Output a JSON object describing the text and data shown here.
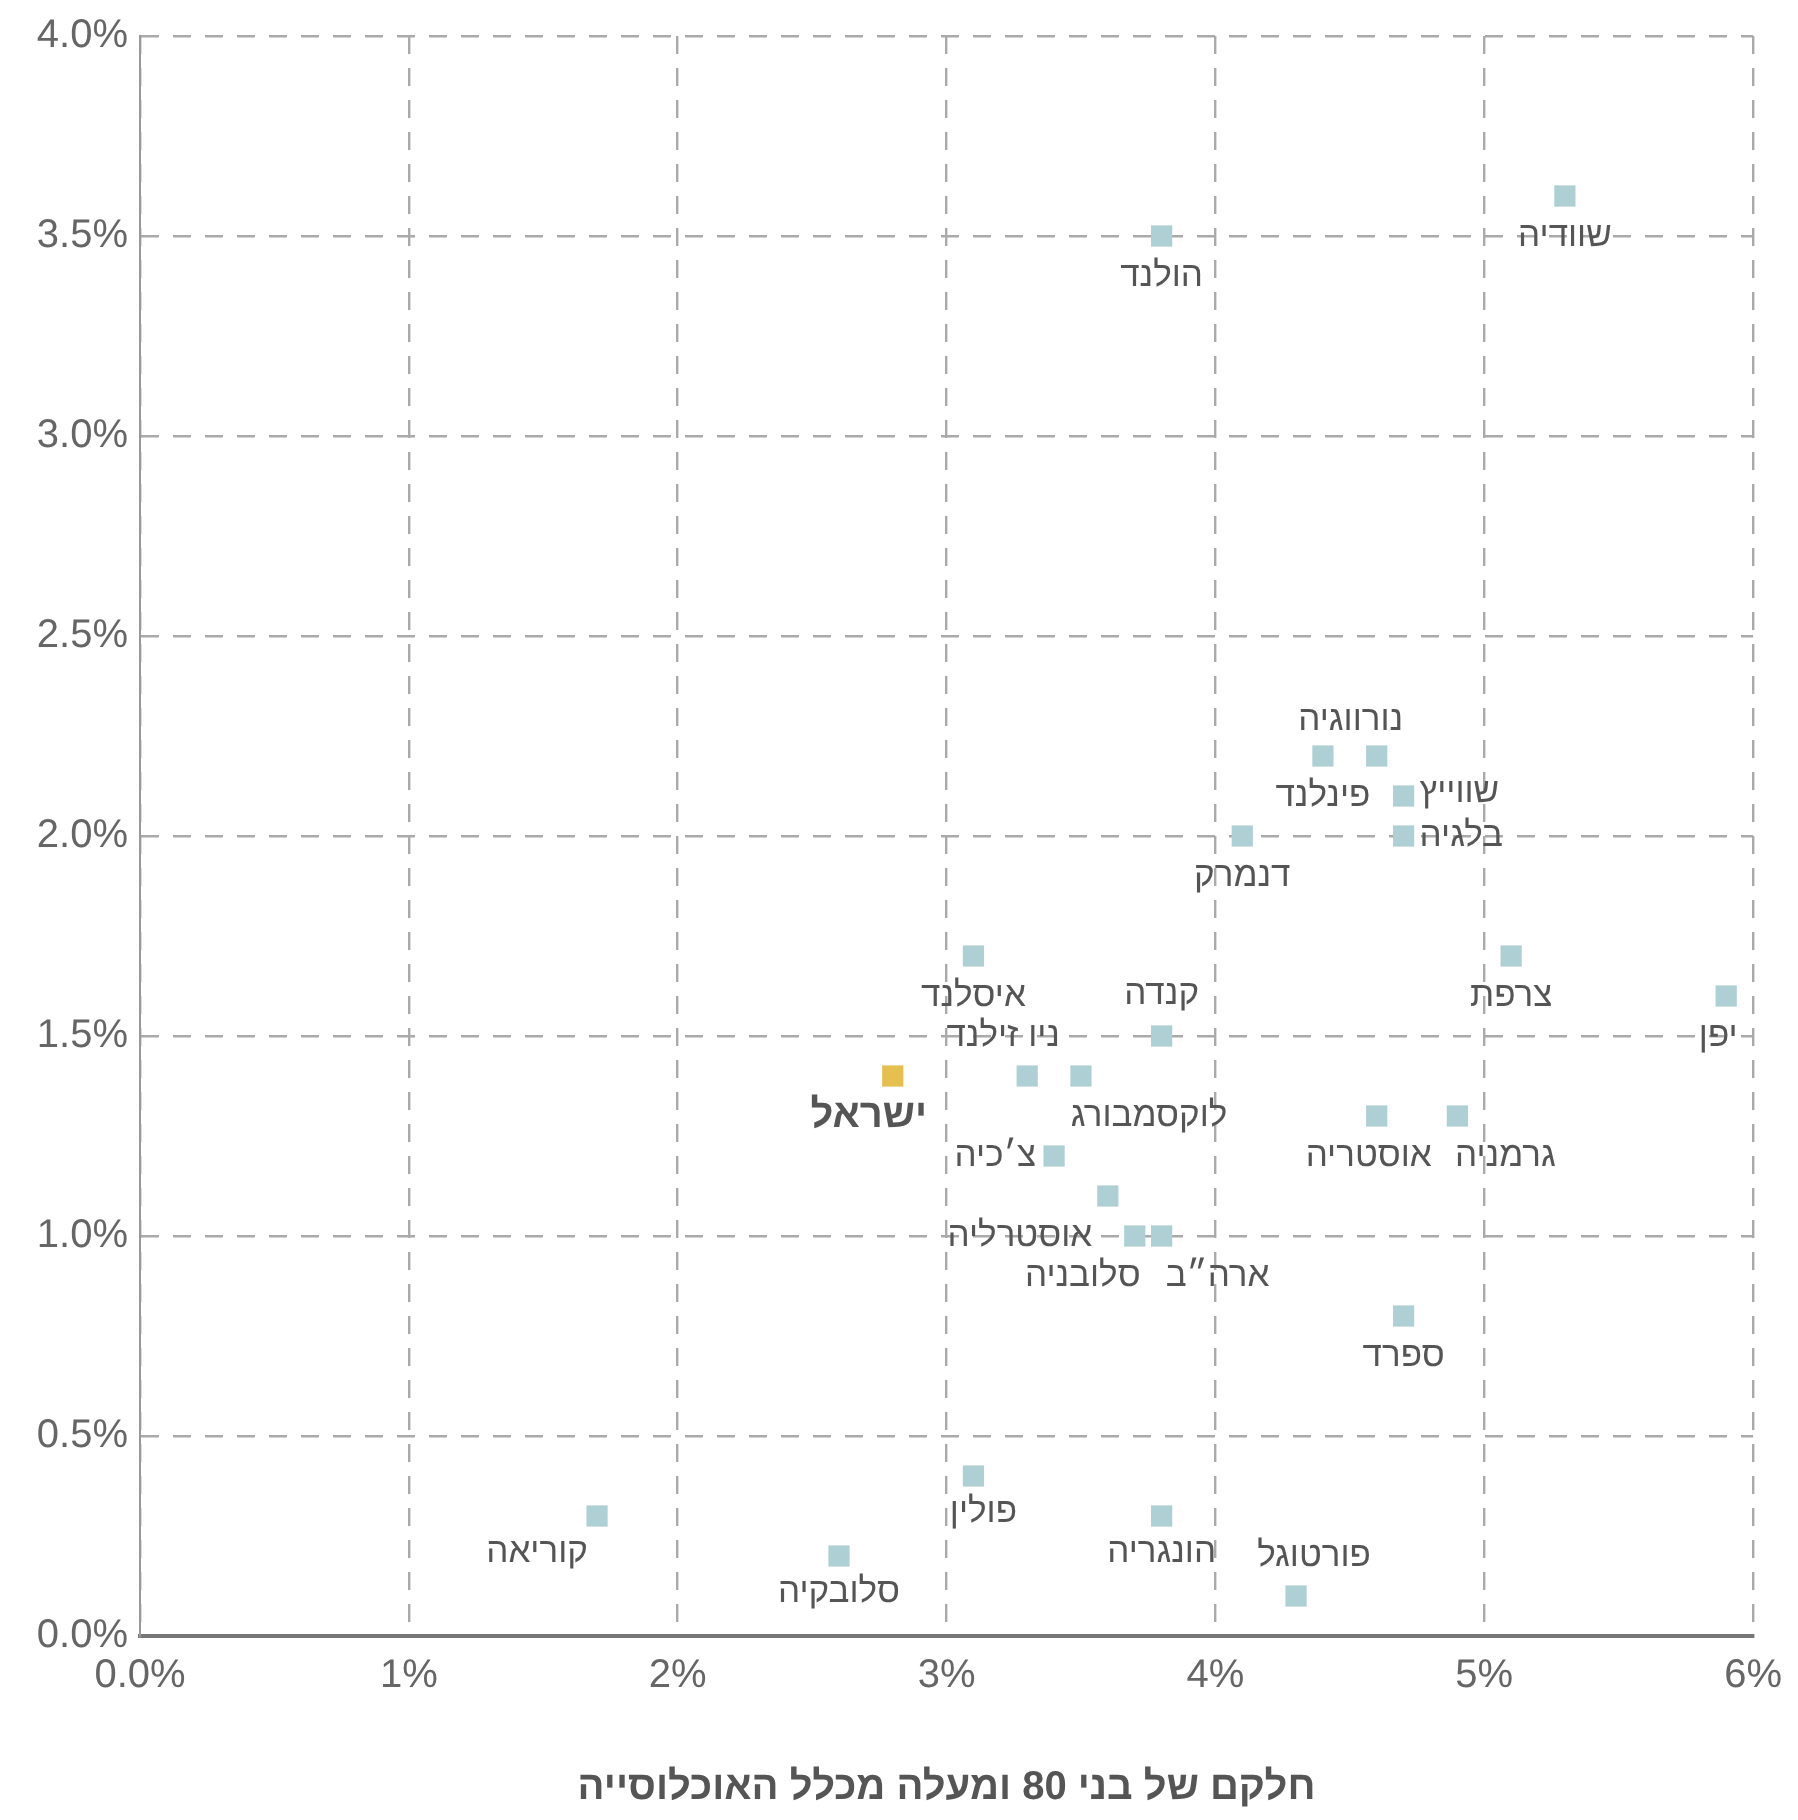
{
  "chart_data": {
    "type": "scatter",
    "xlabel": "חלקם של בני 80 ומעלה מכלל האוכלוסייה",
    "xlim": [
      0,
      6
    ],
    "xticks": [
      {
        "value": 0,
        "label": "0.0%"
      },
      {
        "value": 1,
        "label": "1%"
      },
      {
        "value": 2,
        "label": "2%"
      },
      {
        "value": 3,
        "label": "3%"
      },
      {
        "value": 4,
        "label": "4%"
      },
      {
        "value": 5,
        "label": "5%"
      },
      {
        "value": 6,
        "label": "6%"
      }
    ],
    "ylim": [
      0,
      4
    ],
    "yticks": [
      {
        "value": 0,
        "label": "0.0%"
      },
      {
        "value": 0.5,
        "label": "0.5%"
      },
      {
        "value": 1,
        "label": "1.0%"
      },
      {
        "value": 1.5,
        "label": "1.5%"
      },
      {
        "value": 2,
        "label": "2.0%"
      },
      {
        "value": 2.5,
        "label": "2.5%"
      },
      {
        "value": 3,
        "label": "3.0%"
      },
      {
        "value": 3.5,
        "label": "3.5%"
      },
      {
        "value": 4,
        "label": "4.0%"
      }
    ],
    "grid": true,
    "legend": false,
    "marker": "square",
    "series": [
      {
        "color": "#aecfd3",
        "x": [
          5.3,
          3.8,
          4.4,
          4.6,
          4.7,
          4.7,
          4.1,
          5.1,
          5.9,
          3.1,
          3.8,
          3.3,
          3.5,
          4.6,
          4.9,
          3.4,
          3.6,
          3.7,
          3.8,
          4.7,
          3.1,
          1.7,
          2.6,
          3.8,
          4.3
        ],
        "values": [
          3.6,
          3.5,
          2.2,
          2.2,
          2.1,
          2.0,
          2.0,
          1.7,
          1.6,
          1.7,
          1.5,
          1.4,
          1.4,
          1.3,
          1.3,
          1.2,
          1.1,
          1.0,
          1.0,
          0.8,
          0.4,
          0.3,
          0.2,
          0.3,
          0.1
        ]
      },
      {
        "name": "ישראל",
        "color": "#e6c04e",
        "x": [
          2.8
        ],
        "values": [
          1.4
        ]
      }
    ],
    "annotations": [
      {
        "text": "שוודיה",
        "x": 5.3,
        "y": 3.6
      },
      {
        "text": "הולנד",
        "x": 3.8,
        "y": 3.5
      },
      {
        "text": "פינלנד",
        "x": 4.4,
        "y": 2.2
      },
      {
        "text": "נורווגיה",
        "x": 4.6,
        "y": 2.2
      },
      {
        "text": "שווייץ",
        "x": 4.7,
        "y": 2.1
      },
      {
        "text": "בלגיה",
        "x": 4.7,
        "y": 2.0
      },
      {
        "text": "דנמרק",
        "x": 4.1,
        "y": 2.0
      },
      {
        "text": "צרפת",
        "x": 5.1,
        "y": 1.7
      },
      {
        "text": "יפן",
        "x": 5.9,
        "y": 1.6
      },
      {
        "text": "איסלנד",
        "x": 3.1,
        "y": 1.7
      },
      {
        "text": "קנדה",
        "x": 3.8,
        "y": 1.5
      },
      {
        "text": "ניו זילנד",
        "x": 3.3,
        "y": 1.4
      },
      {
        "text": "לוקסמבורג",
        "x": 3.5,
        "y": 1.4
      },
      {
        "text": "אוסטריה",
        "x": 4.6,
        "y": 1.3
      },
      {
        "text": "גרמניה",
        "x": 4.9,
        "y": 1.3
      },
      {
        "text": "צ׳כיה",
        "x": 3.4,
        "y": 1.2
      },
      {
        "text": "אוסטרליה",
        "x": 3.6,
        "y": 1.1
      },
      {
        "text": "סלובניה",
        "x": 3.7,
        "y": 1.0
      },
      {
        "text": "ארה״ב",
        "x": 3.8,
        "y": 1.0
      },
      {
        "text": "ספרד",
        "x": 4.7,
        "y": 0.8
      },
      {
        "text": "פולין",
        "x": 3.1,
        "y": 0.4
      },
      {
        "text": "קוריאה",
        "x": 1.7,
        "y": 0.3
      },
      {
        "text": "סלובקיה",
        "x": 2.6,
        "y": 0.2
      },
      {
        "text": "הונגריה",
        "x": 3.8,
        "y": 0.3
      },
      {
        "text": "פורטוגל",
        "x": 4.3,
        "y": 0.1
      }
    ]
  }
}
